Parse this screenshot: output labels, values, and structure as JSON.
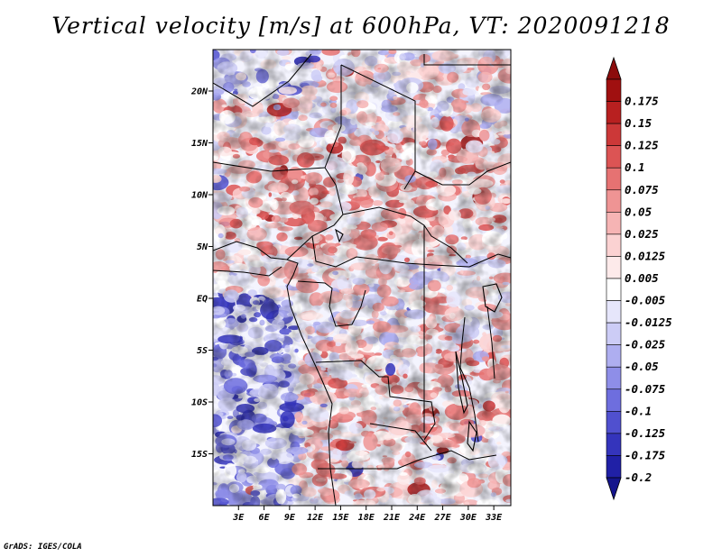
{
  "title": "Vertical velocity [m/s] at 600hPa, VT: 2020091218",
  "footer": "GrADS: IGES/COLA",
  "map": {
    "region": "Central Africa",
    "lat_range": [
      -20,
      24
    ],
    "lon_range": [
      0,
      35
    ],
    "lat_labels": [
      {
        "lat": 20,
        "label": "20N"
      },
      {
        "lat": 15,
        "label": "15N"
      },
      {
        "lat": 10,
        "label": "10N"
      },
      {
        "lat": 5,
        "label": "5N"
      },
      {
        "lat": 0,
        "label": "EQ"
      },
      {
        "lat": -5,
        "label": "5S"
      },
      {
        "lat": -10,
        "label": "10S"
      },
      {
        "lat": -15,
        "label": "15S"
      }
    ],
    "lon_labels": [
      {
        "lon": 3,
        "label": "3E"
      },
      {
        "lon": 6,
        "label": "6E"
      },
      {
        "lon": 9,
        "label": "9E"
      },
      {
        "lon": 12,
        "label": "12E"
      },
      {
        "lon": 15,
        "label": "15E"
      },
      {
        "lon": 18,
        "label": "18E"
      },
      {
        "lon": 21,
        "label": "21E"
      },
      {
        "lon": 24,
        "label": "24E"
      },
      {
        "lon": 27,
        "label": "27E"
      },
      {
        "lon": 30,
        "label": "30E"
      },
      {
        "lon": 33,
        "label": "33E"
      }
    ]
  },
  "colorbar": {
    "levels": [
      {
        "label": "0.175",
        "color": "#a01010"
      },
      {
        "label": "0.15",
        "color": "#b82020"
      },
      {
        "label": "0.125",
        "color": "#cc3838"
      },
      {
        "label": "0.1",
        "color": "#dc5454"
      },
      {
        "label": "0.075",
        "color": "#e67272"
      },
      {
        "label": "0.05",
        "color": "#ef9494"
      },
      {
        "label": "0.025",
        "color": "#f6b4b4"
      },
      {
        "label": "0.0125",
        "color": "#fbd2d2"
      },
      {
        "label": "0.005",
        "color": "#fdeaea"
      },
      {
        "label": "-0.005",
        "color": "#ffffff"
      },
      {
        "label": "-0.0125",
        "color": "#e6e6fb"
      },
      {
        "label": "-0.025",
        "color": "#ccccf6"
      },
      {
        "label": "-0.05",
        "color": "#aeaef0"
      },
      {
        "label": "-0.075",
        "color": "#8e8ee8"
      },
      {
        "label": "-0.1",
        "color": "#6e6ede"
      },
      {
        "label": "-0.125",
        "color": "#5050cf"
      },
      {
        "label": "-0.175",
        "color": "#3434bc"
      },
      {
        "label": "-0.2",
        "color": "#2020a6"
      }
    ],
    "top_color": "#8c0c0c",
    "bottom_color": "#14148c"
  }
}
